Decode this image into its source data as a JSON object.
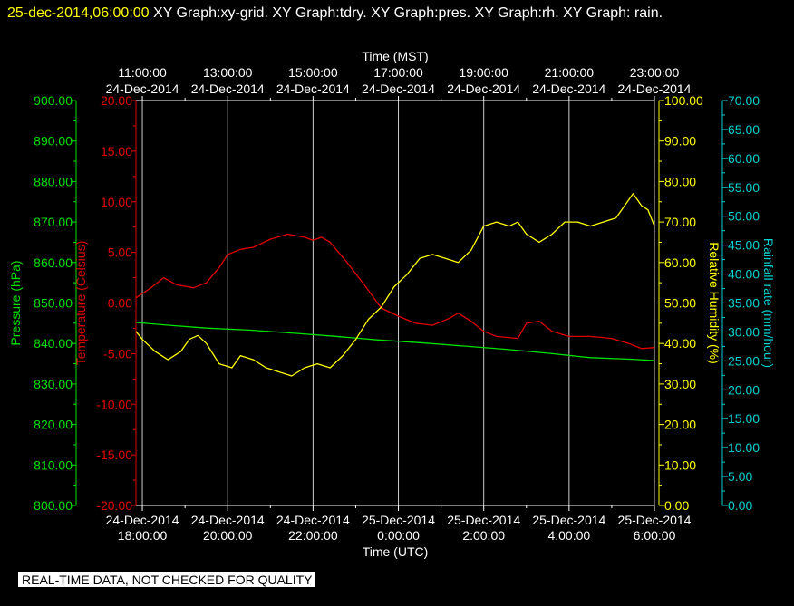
{
  "header": {
    "timestamp": "25-dec-2014,06:00:00",
    "graphs": "  XY Graph:xy-grid.  XY Graph:tdry.  XY Graph:pres.  XY Graph:rh.  XY Graph: rain."
  },
  "footer": {
    "notice": "REAL-TIME DATA, NOT CHECKED FOR QUALITY"
  },
  "colors": {
    "background": "#000000",
    "pressure": "#00e000",
    "temperature": "#e00000",
    "humidity": "#ffff00",
    "rain": "#00d0d0",
    "grid": "#ffffff"
  },
  "chart_data": {
    "type": "line",
    "x_range_hours": [
      17.85,
      30.0
    ],
    "top_axis": {
      "label": "Time (MST)",
      "ticks": [
        {
          "h": 18,
          "time": "11:00:00",
          "date": "24-Dec-2014"
        },
        {
          "h": 20,
          "time": "13:00:00",
          "date": "24-Dec-2014"
        },
        {
          "h": 22,
          "time": "15:00:00",
          "date": "24-Dec-2014"
        },
        {
          "h": 24,
          "time": "17:00:00",
          "date": "24-Dec-2014"
        },
        {
          "h": 26,
          "time": "19:00:00",
          "date": "24-Dec-2014"
        },
        {
          "h": 28,
          "time": "21:00:00",
          "date": "24-Dec-2014"
        },
        {
          "h": 30,
          "time": "23:00:00",
          "date": "24-Dec-2014"
        }
      ]
    },
    "bottom_axis": {
      "label": "Time (UTC)",
      "ticks": [
        {
          "h": 18,
          "date": "24-Dec-2014",
          "time": "18:00:00"
        },
        {
          "h": 20,
          "date": "24-Dec-2014",
          "time": "20:00:00"
        },
        {
          "h": 22,
          "date": "24-Dec-2014",
          "time": "22:00:00"
        },
        {
          "h": 24,
          "date": "25-Dec-2014",
          "time": "0:00:00"
        },
        {
          "h": 26,
          "date": "25-Dec-2014",
          "time": "2:00:00"
        },
        {
          "h": 28,
          "date": "25-Dec-2014",
          "time": "4:00:00"
        },
        {
          "h": 30,
          "date": "25-Dec-2014",
          "time": "6:00:00"
        }
      ]
    },
    "series": [
      {
        "name": "Pressure (hPa)",
        "axis": "pressure",
        "range": [
          800,
          900
        ],
        "tick_labels": [
          "800.00",
          "810.00",
          "820.00",
          "830.00",
          "840.00",
          "850.00",
          "860.00",
          "870.00",
          "880.00",
          "890.00",
          "900.00"
        ],
        "points": [
          [
            17.85,
            845.2
          ],
          [
            18.5,
            844.6
          ],
          [
            19.5,
            843.8
          ],
          [
            20.5,
            843.3
          ],
          [
            21.5,
            842.6
          ],
          [
            22.5,
            841.8
          ],
          [
            23.5,
            840.9
          ],
          [
            24.5,
            840.2
          ],
          [
            25.5,
            839.4
          ],
          [
            26.5,
            838.6
          ],
          [
            27.5,
            837.6
          ],
          [
            28.5,
            836.5
          ],
          [
            29.5,
            836.1
          ],
          [
            30.0,
            835.8
          ]
        ]
      },
      {
        "name": "Temperature (Celsius)",
        "axis": "temperature",
        "range": [
          -20,
          20
        ],
        "tick_labels": [
          "-20.00",
          "-15.00",
          "-10.00",
          "-5.00",
          "0.00",
          "5.00",
          "10.00",
          "15.00",
          "20.00"
        ],
        "points": [
          [
            17.85,
            0.5
          ],
          [
            18.2,
            1.5
          ],
          [
            18.5,
            2.5
          ],
          [
            18.8,
            1.8
          ],
          [
            19.2,
            1.5
          ],
          [
            19.5,
            2.0
          ],
          [
            19.8,
            3.5
          ],
          [
            20.0,
            4.8
          ],
          [
            20.3,
            5.3
          ],
          [
            20.6,
            5.5
          ],
          [
            21.0,
            6.3
          ],
          [
            21.4,
            6.8
          ],
          [
            21.8,
            6.5
          ],
          [
            22.0,
            6.2
          ],
          [
            22.2,
            6.5
          ],
          [
            22.4,
            6.0
          ],
          [
            22.8,
            4.0
          ],
          [
            23.2,
            1.8
          ],
          [
            23.6,
            -0.5
          ],
          [
            24.0,
            -1.3
          ],
          [
            24.4,
            -2.0
          ],
          [
            24.8,
            -2.2
          ],
          [
            25.2,
            -1.5
          ],
          [
            25.4,
            -1.0
          ],
          [
            25.7,
            -1.8
          ],
          [
            26.0,
            -2.8
          ],
          [
            26.3,
            -3.3
          ],
          [
            26.8,
            -3.5
          ],
          [
            27.0,
            -2.0
          ],
          [
            27.3,
            -1.8
          ],
          [
            27.6,
            -2.8
          ],
          [
            28.0,
            -3.3
          ],
          [
            28.5,
            -3.3
          ],
          [
            29.0,
            -3.5
          ],
          [
            29.4,
            -4.0
          ],
          [
            29.7,
            -4.5
          ],
          [
            30.0,
            -4.4
          ]
        ]
      },
      {
        "name": "Relative Humidity (%)",
        "axis": "humidity",
        "range": [
          0,
          100
        ],
        "tick_labels": [
          "0.00",
          "10.00",
          "20.00",
          "30.00",
          "40.00",
          "50.00",
          "60.00",
          "70.00",
          "80.00",
          "90.00",
          "100.00"
        ],
        "points": [
          [
            17.85,
            43
          ],
          [
            18.0,
            41
          ],
          [
            18.3,
            38
          ],
          [
            18.6,
            36
          ],
          [
            18.9,
            38
          ],
          [
            19.1,
            41
          ],
          [
            19.3,
            42
          ],
          [
            19.5,
            40
          ],
          [
            19.8,
            35
          ],
          [
            20.1,
            34
          ],
          [
            20.3,
            37
          ],
          [
            20.6,
            36
          ],
          [
            20.9,
            34
          ],
          [
            21.2,
            33
          ],
          [
            21.5,
            32
          ],
          [
            21.8,
            34
          ],
          [
            22.1,
            35
          ],
          [
            22.4,
            34
          ],
          [
            22.7,
            37
          ],
          [
            23.0,
            41
          ],
          [
            23.3,
            46
          ],
          [
            23.6,
            49
          ],
          [
            23.9,
            54
          ],
          [
            24.2,
            57
          ],
          [
            24.5,
            61
          ],
          [
            24.8,
            62
          ],
          [
            25.1,
            61
          ],
          [
            25.4,
            60
          ],
          [
            25.7,
            63
          ],
          [
            26.0,
            69
          ],
          [
            26.3,
            70
          ],
          [
            26.6,
            69
          ],
          [
            26.8,
            70
          ],
          [
            27.0,
            67
          ],
          [
            27.3,
            65
          ],
          [
            27.6,
            67
          ],
          [
            27.9,
            70
          ],
          [
            28.2,
            70
          ],
          [
            28.5,
            69
          ],
          [
            28.8,
            70
          ],
          [
            29.1,
            71
          ],
          [
            29.3,
            74
          ],
          [
            29.5,
            77
          ],
          [
            29.7,
            74
          ],
          [
            29.85,
            73
          ],
          [
            30.0,
            69
          ]
        ]
      },
      {
        "name": "Rainfall rate (mm/hour)",
        "axis": "rain",
        "range": [
          0,
          70
        ],
        "tick_labels": [
          "0.00",
          "5.00",
          "10.00",
          "15.00",
          "20.00",
          "25.00",
          "30.00",
          "35.00",
          "40.00",
          "45.00",
          "50.00",
          "55.00",
          "60.00",
          "65.00",
          "70.00"
        ],
        "points": []
      }
    ]
  }
}
